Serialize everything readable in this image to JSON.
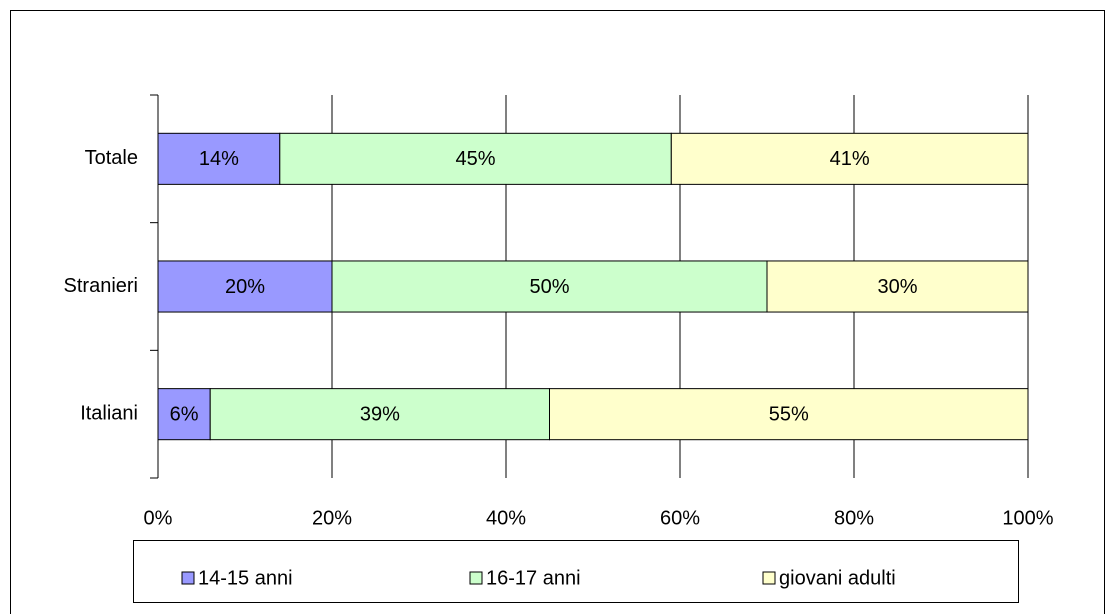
{
  "chart_data": {
    "type": "bar",
    "orientation": "horizontal",
    "stacked": true,
    "categories": [
      "Totale",
      "Stranieri",
      "Italiani"
    ],
    "series": [
      {
        "name": "14-15 anni",
        "color": "#9999ff",
        "values": [
          14,
          20,
          6
        ],
        "value_labels": [
          "14%",
          "20%",
          "6%"
        ]
      },
      {
        "name": "16-17 anni",
        "color": "#ccffcc",
        "values": [
          45,
          50,
          39
        ],
        "value_labels": [
          "45%",
          "50%",
          "39%"
        ]
      },
      {
        "name": "giovani adulti",
        "color": "#ffffcc",
        "values": [
          41,
          30,
          55
        ],
        "value_labels": [
          "41%",
          "30%",
          "55%"
        ]
      }
    ],
    "xlim": [
      0,
      100
    ],
    "xticks": [
      {
        "value": 0,
        "label": "0%"
      },
      {
        "value": 20,
        "label": "20%"
      },
      {
        "value": 40,
        "label": "40%"
      },
      {
        "value": 60,
        "label": "60%"
      },
      {
        "value": 80,
        "label": "80%"
      },
      {
        "value": 100,
        "label": "100%"
      }
    ],
    "grid": true,
    "legend": "bottom"
  }
}
